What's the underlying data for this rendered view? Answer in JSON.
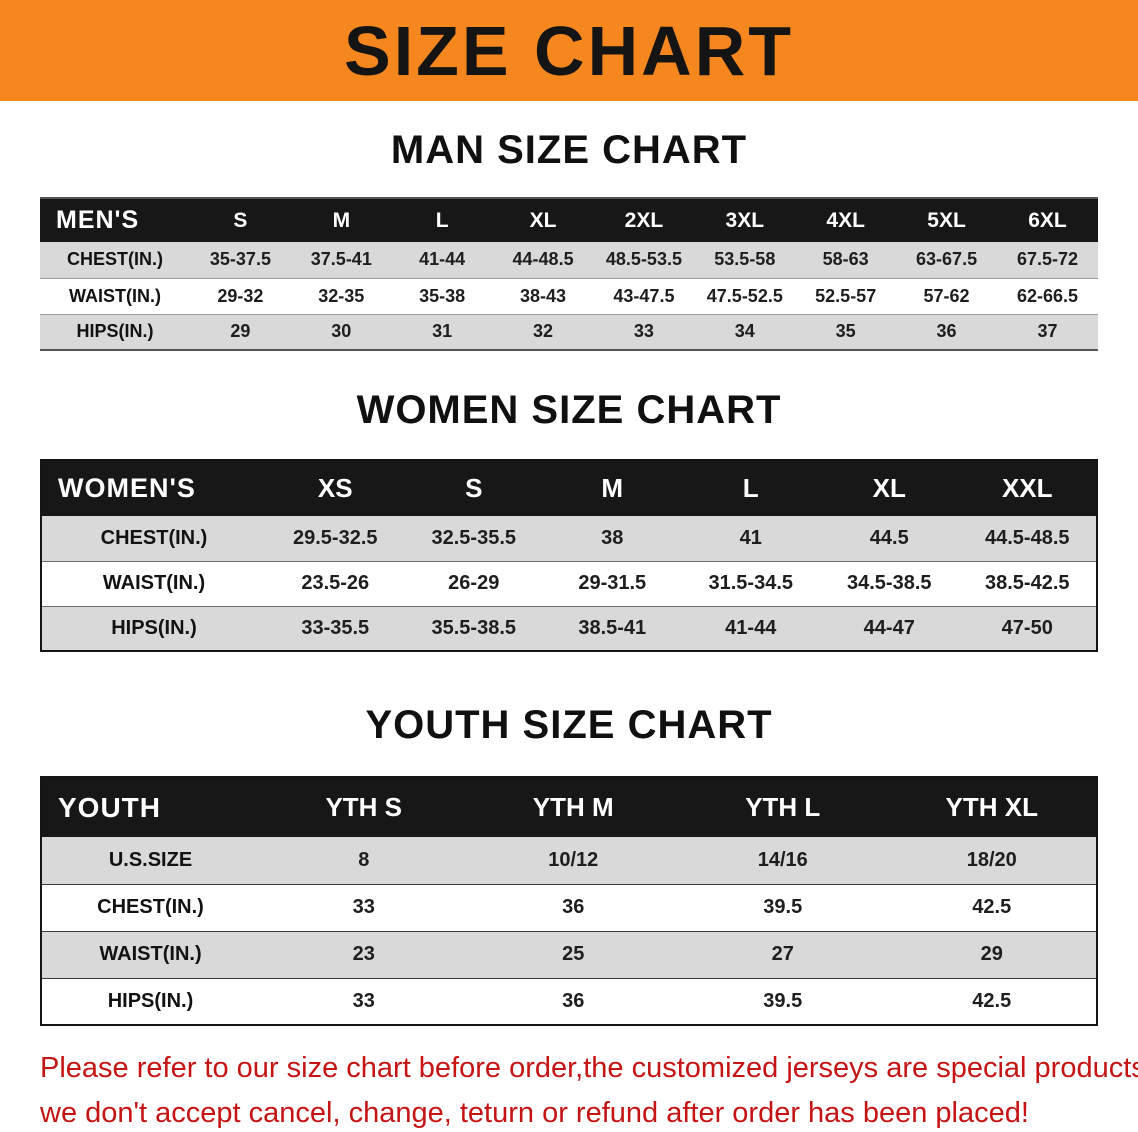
{
  "banner": {
    "title": "SIZE CHART"
  },
  "colors": {
    "banner": "#f6871f",
    "header": "#171717",
    "stripe": "#d9d9d9",
    "notice": "#c41414"
  },
  "sections": [
    {
      "heading": "MAN SIZE CHART",
      "table": {
        "header": [
          "MEN'S",
          "S",
          "M",
          "L",
          "XL",
          "2XL",
          "3XL",
          "4XL",
          "5XL",
          "6XL"
        ],
        "rows": [
          [
            "CHEST(IN.)",
            "35-37.5",
            "37.5-41",
            "41-44",
            "44-48.5",
            "48.5-53.5",
            "53.5-58",
            "58-63",
            "63-67.5",
            "67.5-72"
          ],
          [
            "WAIST(IN.)",
            "29-32",
            "32-35",
            "35-38",
            "38-43",
            "43-47.5",
            "47.5-52.5",
            "52.5-57",
            "57-62",
            "62-66.5"
          ],
          [
            "HIPS(IN.)",
            "29",
            "30",
            "31",
            "32",
            "33",
            "34",
            "35",
            "36",
            "37"
          ]
        ]
      }
    },
    {
      "heading": "WOMEN SIZE CHART",
      "table": {
        "header": [
          "WOMEN'S",
          "XS",
          "S",
          "M",
          "L",
          "XL",
          "XXL"
        ],
        "rows": [
          [
            "CHEST(IN.)",
            "29.5-32.5",
            "32.5-35.5",
            "38",
            "41",
            "44.5",
            "44.5-48.5"
          ],
          [
            "WAIST(IN.)",
            "23.5-26",
            "26-29",
            "29-31.5",
            "31.5-34.5",
            "34.5-38.5",
            "38.5-42.5"
          ],
          [
            "HIPS(IN.)",
            "33-35.5",
            "35.5-38.5",
            "38.5-41",
            "41-44",
            "44-47",
            "47-50"
          ]
        ]
      }
    },
    {
      "heading": "YOUTH SIZE CHART",
      "table": {
        "header": [
          "YOUTH",
          "YTH S",
          "YTH M",
          "YTH L",
          "YTH XL"
        ],
        "rows": [
          [
            "U.S.SIZE",
            "8",
            "10/12",
            "14/16",
            "18/20"
          ],
          [
            "CHEST(IN.)",
            "33",
            "36",
            "39.5",
            "42.5"
          ],
          [
            "WAIST(IN.)",
            "23",
            "25",
            "27",
            "29"
          ],
          [
            "HIPS(IN.)",
            "33",
            "36",
            "39.5",
            "42.5"
          ]
        ]
      }
    }
  ],
  "footer": {
    "line1": "Please refer to our size chart before order,the customized jerseys are special products,",
    "line2": "we don't accept cancel, change, teturn or refund after order has been placed!"
  }
}
